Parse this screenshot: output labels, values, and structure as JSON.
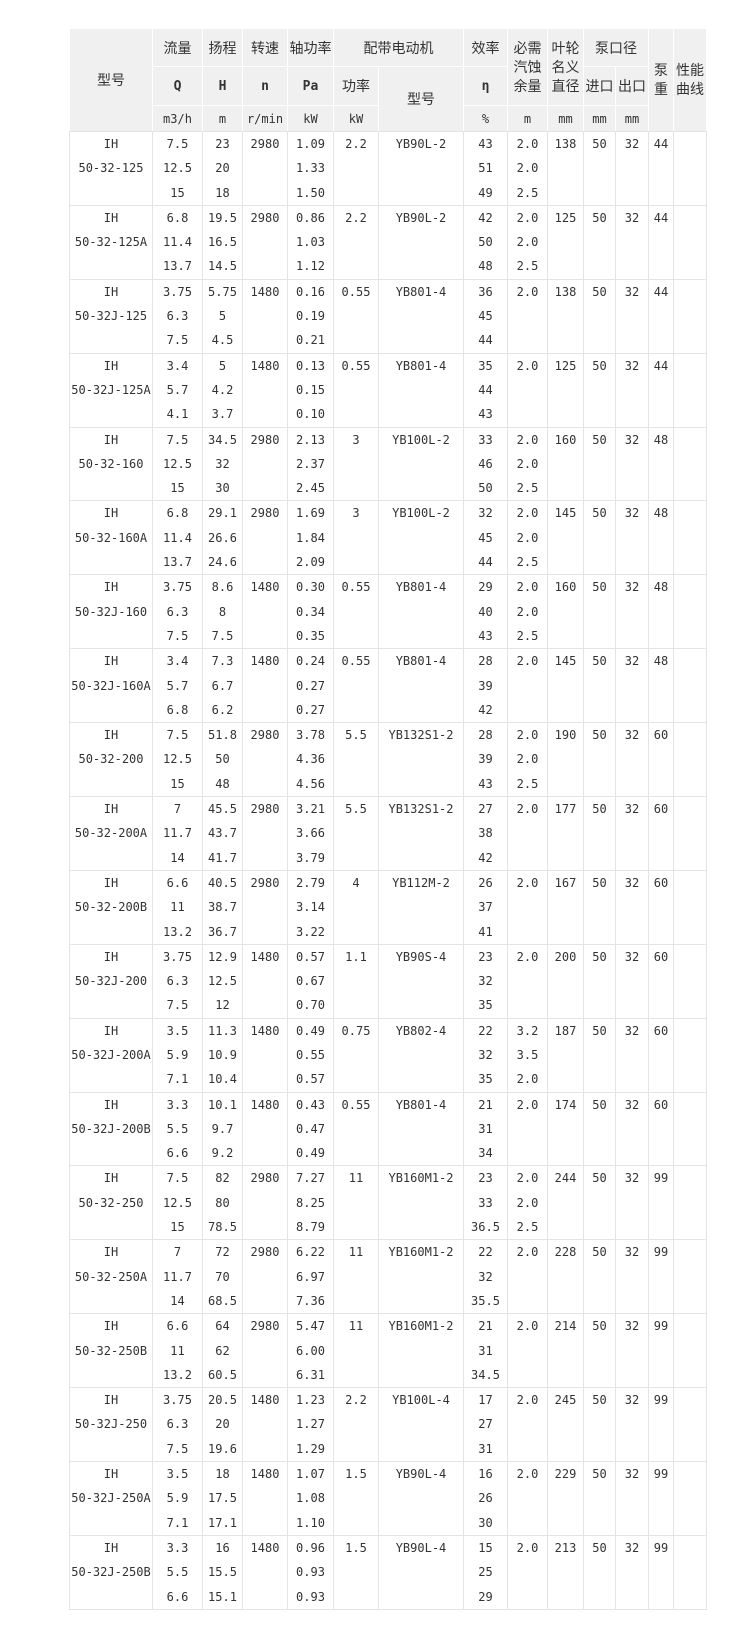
{
  "table": {
    "header": {
      "model": "型号",
      "flow": {
        "label": "流量",
        "sym": "Q",
        "unit": "m3/h"
      },
      "head": {
        "label": "扬程",
        "sym": "H",
        "unit": "m"
      },
      "speed": {
        "label": "转速",
        "sym": "n",
        "unit": "r/min"
      },
      "shaft_power": {
        "label": "轴功率",
        "sym": "Pa",
        "unit": "kW"
      },
      "motor": {
        "label": "配带电动机",
        "power_label": "功率",
        "power_unit": "kW",
        "model_label": "型号"
      },
      "efficiency": {
        "label": "效率",
        "sym": "η",
        "unit": "%"
      },
      "npsh": {
        "label": "必需\n汽蚀\n余量",
        "unit": "m"
      },
      "impeller": {
        "label": "叶轮\n名义\n直径",
        "unit": "mm"
      },
      "port": {
        "label": "泵口径",
        "inlet": "进口",
        "outlet": "出口",
        "inlet_unit": "mm",
        "outlet_unit": "mm"
      },
      "weight": "泵\n重",
      "curve": "性能\n曲线"
    },
    "rows": [
      {
        "model": [
          "IH",
          "50-32-125"
        ],
        "q": [
          "7.5",
          "12.5",
          "15"
        ],
        "h": [
          "23",
          "20",
          "18"
        ],
        "n": [
          "2980"
        ],
        "pa": [
          "1.09",
          "1.33",
          "1.50"
        ],
        "motor_power": [
          "2.2"
        ],
        "motor_model": [
          "YB90L-2"
        ],
        "eff": [
          "43",
          "51",
          "49"
        ],
        "npsh": [
          "2.0",
          "2.0",
          "2.5"
        ],
        "impeller": [
          "138"
        ],
        "inlet": [
          "50"
        ],
        "outlet": [
          "32"
        ],
        "weight": [
          "44"
        ],
        "curve": []
      },
      {
        "model": [
          "IH",
          "50-32-125A"
        ],
        "q": [
          "6.8",
          "11.4",
          "13.7"
        ],
        "h": [
          "19.5",
          "16.5",
          "14.5"
        ],
        "n": [
          "2980"
        ],
        "pa": [
          "0.86",
          "1.03",
          "1.12"
        ],
        "motor_power": [
          "2.2"
        ],
        "motor_model": [
          "YB90L-2"
        ],
        "eff": [
          "42",
          "50",
          "48"
        ],
        "npsh": [
          "2.0",
          "2.0",
          "2.5"
        ],
        "impeller": [
          "125"
        ],
        "inlet": [
          "50"
        ],
        "outlet": [
          "32"
        ],
        "weight": [
          "44"
        ],
        "curve": []
      },
      {
        "model": [
          "IH",
          "50-32J-125"
        ],
        "q": [
          "3.75",
          "6.3",
          "7.5"
        ],
        "h": [
          "5.75",
          "5",
          "4.5"
        ],
        "n": [
          "1480"
        ],
        "pa": [
          "0.16",
          "0.19",
          "0.21"
        ],
        "motor_power": [
          "0.55"
        ],
        "motor_model": [
          "YB801-4"
        ],
        "eff": [
          "36",
          "45",
          "44"
        ],
        "npsh": [
          "2.0"
        ],
        "impeller": [
          "138"
        ],
        "inlet": [
          "50"
        ],
        "outlet": [
          "32"
        ],
        "weight": [
          "44"
        ],
        "curve": []
      },
      {
        "model": [
          "IH",
          "50-32J-125A"
        ],
        "q": [
          "3.4",
          "5.7",
          "4.1"
        ],
        "h": [
          "5",
          "4.2",
          "3.7"
        ],
        "n": [
          "1480"
        ],
        "pa": [
          "0.13",
          "0.15",
          "0.10"
        ],
        "motor_power": [
          "0.55"
        ],
        "motor_model": [
          "YB801-4"
        ],
        "eff": [
          "35",
          "44",
          "43"
        ],
        "npsh": [
          "2.0"
        ],
        "impeller": [
          "125"
        ],
        "inlet": [
          "50"
        ],
        "outlet": [
          "32"
        ],
        "weight": [
          "44"
        ],
        "curve": []
      },
      {
        "model": [
          "IH",
          "50-32-160"
        ],
        "q": [
          "7.5",
          "12.5",
          "15"
        ],
        "h": [
          "34.5",
          "32",
          "30"
        ],
        "n": [
          "2980"
        ],
        "pa": [
          "2.13",
          "2.37",
          "2.45"
        ],
        "motor_power": [
          "3"
        ],
        "motor_model": [
          "YB100L-2"
        ],
        "eff": [
          "33",
          "46",
          "50"
        ],
        "npsh": [
          "2.0",
          "2.0",
          "2.5"
        ],
        "impeller": [
          "160"
        ],
        "inlet": [
          "50"
        ],
        "outlet": [
          "32"
        ],
        "weight": [
          "48"
        ],
        "curve": []
      },
      {
        "model": [
          "IH",
          "50-32-160A"
        ],
        "q": [
          "6.8",
          "11.4",
          "13.7"
        ],
        "h": [
          "29.1",
          "26.6",
          "24.6"
        ],
        "n": [
          "2980"
        ],
        "pa": [
          "1.69",
          "1.84",
          "2.09"
        ],
        "motor_power": [
          "3"
        ],
        "motor_model": [
          "YB100L-2"
        ],
        "eff": [
          "32",
          "45",
          "44"
        ],
        "npsh": [
          "2.0",
          "2.0",
          "2.5"
        ],
        "impeller": [
          "145"
        ],
        "inlet": [
          "50"
        ],
        "outlet": [
          "32"
        ],
        "weight": [
          "48"
        ],
        "curve": []
      },
      {
        "model": [
          "IH",
          "50-32J-160"
        ],
        "q": [
          "3.75",
          "6.3",
          "7.5"
        ],
        "h": [
          "8.6",
          "8",
          "7.5"
        ],
        "n": [
          "1480"
        ],
        "pa": [
          "0.30",
          "0.34",
          "0.35"
        ],
        "motor_power": [
          "0.55"
        ],
        "motor_model": [
          "YB801-4"
        ],
        "eff": [
          "29",
          "40",
          "43"
        ],
        "npsh": [
          "2.0",
          "2.0",
          "2.5"
        ],
        "impeller": [
          "160"
        ],
        "inlet": [
          "50"
        ],
        "outlet": [
          "32"
        ],
        "weight": [
          "48"
        ],
        "curve": []
      },
      {
        "model": [
          "IH",
          "50-32J-160A"
        ],
        "q": [
          "3.4",
          "5.7",
          "6.8"
        ],
        "h": [
          "7.3",
          "6.7",
          "6.2"
        ],
        "n": [
          "1480"
        ],
        "pa": [
          "0.24",
          "0.27",
          "0.27"
        ],
        "motor_power": [
          "0.55"
        ],
        "motor_model": [
          "YB801-4"
        ],
        "eff": [
          "28",
          "39",
          "42"
        ],
        "npsh": [
          "2.0"
        ],
        "impeller": [
          "145"
        ],
        "inlet": [
          "50"
        ],
        "outlet": [
          "32"
        ],
        "weight": [
          "48"
        ],
        "curve": []
      },
      {
        "model": [
          "IH",
          "50-32-200"
        ],
        "q": [
          "7.5",
          "12.5",
          "15"
        ],
        "h": [
          "51.8",
          "50",
          "48"
        ],
        "n": [
          "2980"
        ],
        "pa": [
          "3.78",
          "4.36",
          "4.56"
        ],
        "motor_power": [
          "5.5"
        ],
        "motor_model": [
          "YB132S1-2"
        ],
        "eff": [
          "28",
          "39",
          "43"
        ],
        "npsh": [
          "2.0",
          "2.0",
          "2.5"
        ],
        "impeller": [
          "190"
        ],
        "inlet": [
          "50"
        ],
        "outlet": [
          "32"
        ],
        "weight": [
          "60"
        ],
        "curve": []
      },
      {
        "model": [
          "IH",
          "50-32-200A"
        ],
        "q": [
          "7",
          "11.7",
          "14"
        ],
        "h": [
          "45.5",
          "43.7",
          "41.7"
        ],
        "n": [
          "2980"
        ],
        "pa": [
          "3.21",
          "3.66",
          "3.79"
        ],
        "motor_power": [
          "5.5"
        ],
        "motor_model": [
          "YB132S1-2"
        ],
        "eff": [
          "27",
          "38",
          "42"
        ],
        "npsh": [
          "2.0"
        ],
        "impeller": [
          "177"
        ],
        "inlet": [
          "50"
        ],
        "outlet": [
          "32"
        ],
        "weight": [
          "60"
        ],
        "curve": []
      },
      {
        "model": [
          "IH",
          "50-32-200B"
        ],
        "q": [
          "6.6",
          "11",
          "13.2"
        ],
        "h": [
          "40.5",
          "38.7",
          "36.7"
        ],
        "n": [
          "2980"
        ],
        "pa": [
          "2.79",
          "3.14",
          "3.22"
        ],
        "motor_power": [
          "4"
        ],
        "motor_model": [
          "YB112M-2"
        ],
        "eff": [
          "26",
          "37",
          "41"
        ],
        "npsh": [
          "2.0"
        ],
        "impeller": [
          "167"
        ],
        "inlet": [
          "50"
        ],
        "outlet": [
          "32"
        ],
        "weight": [
          "60"
        ],
        "curve": []
      },
      {
        "model": [
          "IH",
          "50-32J-200"
        ],
        "q": [
          "3.75",
          "6.3",
          "7.5"
        ],
        "h": [
          "12.9",
          "12.5",
          "12"
        ],
        "n": [
          "1480"
        ],
        "pa": [
          "0.57",
          "0.67",
          "0.70"
        ],
        "motor_power": [
          "1.1"
        ],
        "motor_model": [
          "YB90S-4"
        ],
        "eff": [
          "23",
          "32",
          "35"
        ],
        "npsh": [
          "2.0"
        ],
        "impeller": [
          "200"
        ],
        "inlet": [
          "50"
        ],
        "outlet": [
          "32"
        ],
        "weight": [
          "60"
        ],
        "curve": []
      },
      {
        "model": [
          "IH",
          "50-32J-200A"
        ],
        "q": [
          "3.5",
          "5.9",
          "7.1"
        ],
        "h": [
          "11.3",
          "10.9",
          "10.4"
        ],
        "n": [
          "1480"
        ],
        "pa": [
          "0.49",
          "0.55",
          "0.57"
        ],
        "motor_power": [
          "0.75"
        ],
        "motor_model": [
          "YB802-4"
        ],
        "eff": [
          "22",
          "32",
          "35"
        ],
        "npsh": [
          "3.2",
          "3.5",
          "2.0"
        ],
        "impeller": [
          "187"
        ],
        "inlet": [
          "50"
        ],
        "outlet": [
          "32"
        ],
        "weight": [
          "60"
        ],
        "curve": []
      },
      {
        "model": [
          "IH",
          "50-32J-200B"
        ],
        "q": [
          "3.3",
          "5.5",
          "6.6"
        ],
        "h": [
          "10.1",
          "9.7",
          "9.2"
        ],
        "n": [
          "1480"
        ],
        "pa": [
          "0.43",
          "0.47",
          "0.49"
        ],
        "motor_power": [
          "0.55"
        ],
        "motor_model": [
          "YB801-4"
        ],
        "eff": [
          "21",
          "31",
          "34"
        ],
        "npsh": [
          "2.0"
        ],
        "impeller": [
          "174"
        ],
        "inlet": [
          "50"
        ],
        "outlet": [
          "32"
        ],
        "weight": [
          "60"
        ],
        "curve": []
      },
      {
        "model": [
          "IH",
          "50-32-250"
        ],
        "q": [
          "7.5",
          "12.5",
          "15"
        ],
        "h": [
          "82",
          "80",
          "78.5"
        ],
        "n": [
          "2980"
        ],
        "pa": [
          "7.27",
          "8.25",
          "8.79"
        ],
        "motor_power": [
          "11"
        ],
        "motor_model": [
          "YB160M1-2"
        ],
        "eff": [
          "23",
          "33",
          "36.5"
        ],
        "npsh": [
          "2.0",
          "2.0",
          "2.5"
        ],
        "impeller": [
          "244"
        ],
        "inlet": [
          "50"
        ],
        "outlet": [
          "32"
        ],
        "weight": [
          "99"
        ],
        "curve": []
      },
      {
        "model": [
          "IH",
          "50-32-250A"
        ],
        "q": [
          "7",
          "11.7",
          "14"
        ],
        "h": [
          "72",
          "70",
          "68.5"
        ],
        "n": [
          "2980"
        ],
        "pa": [
          "6.22",
          "6.97",
          "7.36"
        ],
        "motor_power": [
          "11"
        ],
        "motor_model": [
          "YB160M1-2"
        ],
        "eff": [
          "22",
          "32",
          "35.5"
        ],
        "npsh": [
          "2.0"
        ],
        "impeller": [
          "228"
        ],
        "inlet": [
          "50"
        ],
        "outlet": [
          "32"
        ],
        "weight": [
          "99"
        ],
        "curve": []
      },
      {
        "model": [
          "IH",
          "50-32-250B"
        ],
        "q": [
          "6.6",
          "11",
          "13.2"
        ],
        "h": [
          "64",
          "62",
          "60.5"
        ],
        "n": [
          "2980"
        ],
        "pa": [
          "5.47",
          "6.00",
          "6.31"
        ],
        "motor_power": [
          "11"
        ],
        "motor_model": [
          "YB160M1-2"
        ],
        "eff": [
          "21",
          "31",
          "34.5"
        ],
        "npsh": [
          "2.0"
        ],
        "impeller": [
          "214"
        ],
        "inlet": [
          "50"
        ],
        "outlet": [
          "32"
        ],
        "weight": [
          "99"
        ],
        "curve": []
      },
      {
        "model": [
          "IH",
          "50-32J-250"
        ],
        "q": [
          "3.75",
          "6.3",
          "7.5"
        ],
        "h": [
          "20.5",
          "20",
          "19.6"
        ],
        "n": [
          "1480"
        ],
        "pa": [
          "1.23",
          "1.27",
          "1.29"
        ],
        "motor_power": [
          "2.2"
        ],
        "motor_model": [
          "YB100L-4"
        ],
        "eff": [
          "17",
          "27",
          "31"
        ],
        "npsh": [
          "2.0"
        ],
        "impeller": [
          "245"
        ],
        "inlet": [
          "50"
        ],
        "outlet": [
          "32"
        ],
        "weight": [
          "99"
        ],
        "curve": []
      },
      {
        "model": [
          "IH",
          "50-32J-250A"
        ],
        "q": [
          "3.5",
          "5.9",
          "7.1"
        ],
        "h": [
          "18",
          "17.5",
          "17.1"
        ],
        "n": [
          "1480"
        ],
        "pa": [
          "1.07",
          "1.08",
          "1.10"
        ],
        "motor_power": [
          "1.5"
        ],
        "motor_model": [
          "YB90L-4"
        ],
        "eff": [
          "16",
          "26",
          "30"
        ],
        "npsh": [
          "2.0"
        ],
        "impeller": [
          "229"
        ],
        "inlet": [
          "50"
        ],
        "outlet": [
          "32"
        ],
        "weight": [
          "99"
        ],
        "curve": []
      },
      {
        "model": [
          "IH",
          "50-32J-250B"
        ],
        "q": [
          "3.3",
          "5.5",
          "6.6"
        ],
        "h": [
          "16",
          "15.5",
          "15.1"
        ],
        "n": [
          "1480"
        ],
        "pa": [
          "0.96",
          "0.93",
          "0.93"
        ],
        "motor_power": [
          "1.5"
        ],
        "motor_model": [
          "YB90L-4"
        ],
        "eff": [
          "15",
          "25",
          "29"
        ],
        "npsh": [
          "2.0"
        ],
        "impeller": [
          "213"
        ],
        "inlet": [
          "50"
        ],
        "outlet": [
          "32"
        ],
        "weight": [
          "99"
        ],
        "curve": []
      }
    ]
  }
}
